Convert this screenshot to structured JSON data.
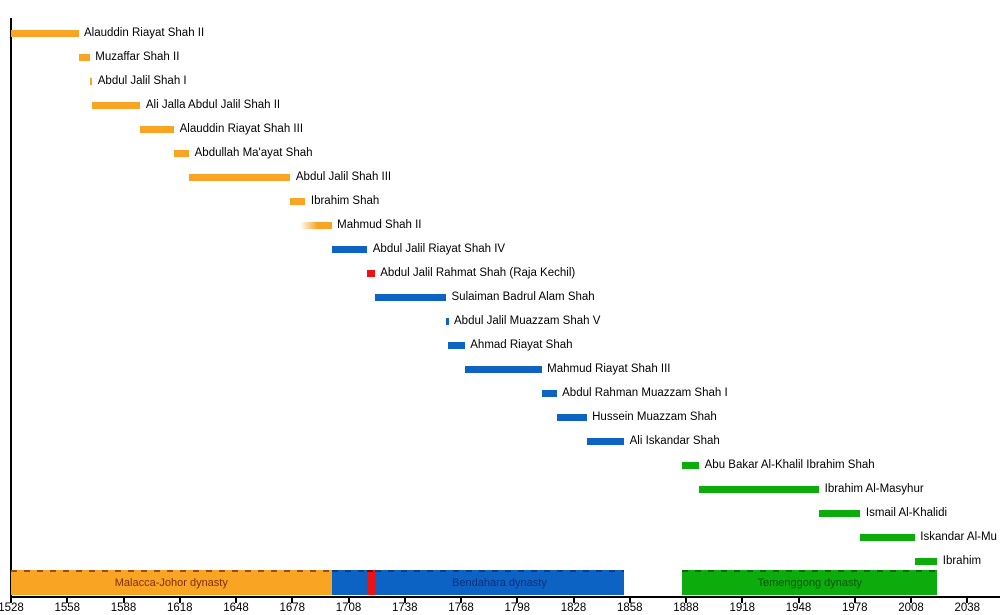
{
  "chart_data": {
    "type": "gantt",
    "unit": "year",
    "grid": false,
    "axis": {
      "start": 1528,
      "end": 2040,
      "tick_interval": 30,
      "ticks": [
        1528,
        1558,
        1588,
        1618,
        1648,
        1678,
        1708,
        1738,
        1768,
        1798,
        1828,
        1858,
        1888,
        1918,
        1948,
        1978,
        2008,
        2038
      ]
    },
    "colors": {
      "malacca": "#F9A422",
      "bendahara": "#0D63C4",
      "kechil": "#EE1111",
      "temenggong": "#0CAC0C",
      "axis": "#000000",
      "label_text": "#000000"
    },
    "reigns": [
      {
        "label": "Alauddin Riayat Shah II",
        "start": 1528,
        "end": 1564,
        "dynasty": "malacca"
      },
      {
        "label": "Muzaffar Shah II",
        "start": 1564,
        "end": 1570,
        "dynasty": "malacca"
      },
      {
        "label": "Abdul Jalil Shah I",
        "start": 1570,
        "end": 1571,
        "dynasty": "malacca"
      },
      {
        "label": "Ali Jalla Abdul Jalil Shah II",
        "start": 1571,
        "end": 1597,
        "dynasty": "malacca"
      },
      {
        "label": "Alauddin Riayat Shah III",
        "start": 1597,
        "end": 1615,
        "dynasty": "malacca"
      },
      {
        "label": "Abdullah Ma'ayat Shah",
        "start": 1615,
        "end": 1623,
        "dynasty": "malacca"
      },
      {
        "label": "Abdul Jalil Shah III",
        "start": 1623,
        "end": 1677,
        "dynasty": "malacca"
      },
      {
        "label": "Ibrahim Shah",
        "start": 1677,
        "end": 1685,
        "dynasty": "malacca"
      },
      {
        "label": "Mahmud Shah II",
        "start": 1682,
        "end": 1699,
        "dynasty": "malacca",
        "fade_in": true
      },
      {
        "label": "Abdul Jalil Riayat Shah IV",
        "start": 1699,
        "end": 1718,
        "dynasty": "bendahara"
      },
      {
        "label": "Abdul Jalil Rahmat Shah (Raja Kechil)",
        "start": 1718,
        "end": 1722,
        "dynasty": "kechil"
      },
      {
        "label": "Sulaiman Badrul Alam Shah",
        "start": 1722,
        "end": 1760,
        "dynasty": "bendahara"
      },
      {
        "label": "Abdul Jalil Muazzam Shah V",
        "start": 1760,
        "end": 1761,
        "dynasty": "bendahara"
      },
      {
        "label": "Ahmad Riayat Shah",
        "start": 1761,
        "end": 1770,
        "dynasty": "bendahara"
      },
      {
        "label": "Mahmud Riayat Shah III",
        "start": 1770,
        "end": 1811,
        "dynasty": "bendahara"
      },
      {
        "label": "Abdul Rahman Muazzam Shah I",
        "start": 1811,
        "end": 1819,
        "dynasty": "bendahara"
      },
      {
        "label": "Hussein Muazzam Shah",
        "start": 1819,
        "end": 1835,
        "dynasty": "bendahara"
      },
      {
        "label": "Ali Iskandar Shah",
        "start": 1835,
        "end": 1855,
        "dynasty": "bendahara"
      },
      {
        "label": "Abu Bakar Al-Khalil Ibrahim Shah",
        "start": 1886,
        "end": 1895,
        "dynasty": "temenggong"
      },
      {
        "label": "Ibrahim Al-Masyhur",
        "start": 1895,
        "end": 1959,
        "dynasty": "temenggong"
      },
      {
        "label": "Ismail Al-Khalidi",
        "start": 1959,
        "end": 1981,
        "dynasty": "temenggong"
      },
      {
        "label": "Iskandar Al-Mu",
        "start": 1981,
        "end": 2010,
        "dynasty": "temenggong"
      },
      {
        "label": "Ibrahim",
        "start": 2010,
        "end": 2022,
        "dynasty": "temenggong"
      }
    ],
    "dynasty_bands": [
      {
        "label": "Malacca-Johor dynasty",
        "start": 1528,
        "end": 1699,
        "dynasty": "malacca",
        "text_color": "#7E2E12"
      },
      {
        "label": "",
        "start": 1699,
        "end": 1718,
        "dynasty": "bendahara",
        "text_color": "#0A2F7E"
      },
      {
        "label": "",
        "start": 1718,
        "end": 1722,
        "dynasty": "kechil",
        "text_color": "#5A0000"
      },
      {
        "label": "Bendahara dynasty",
        "start": 1722,
        "end": 1855,
        "dynasty": "bendahara",
        "text_color": "#0A2F7E"
      },
      {
        "label": "Temenggong dynasty",
        "start": 1886,
        "end": 2022,
        "dynasty": "temenggong",
        "text_color": "#0A540A"
      }
    ]
  }
}
